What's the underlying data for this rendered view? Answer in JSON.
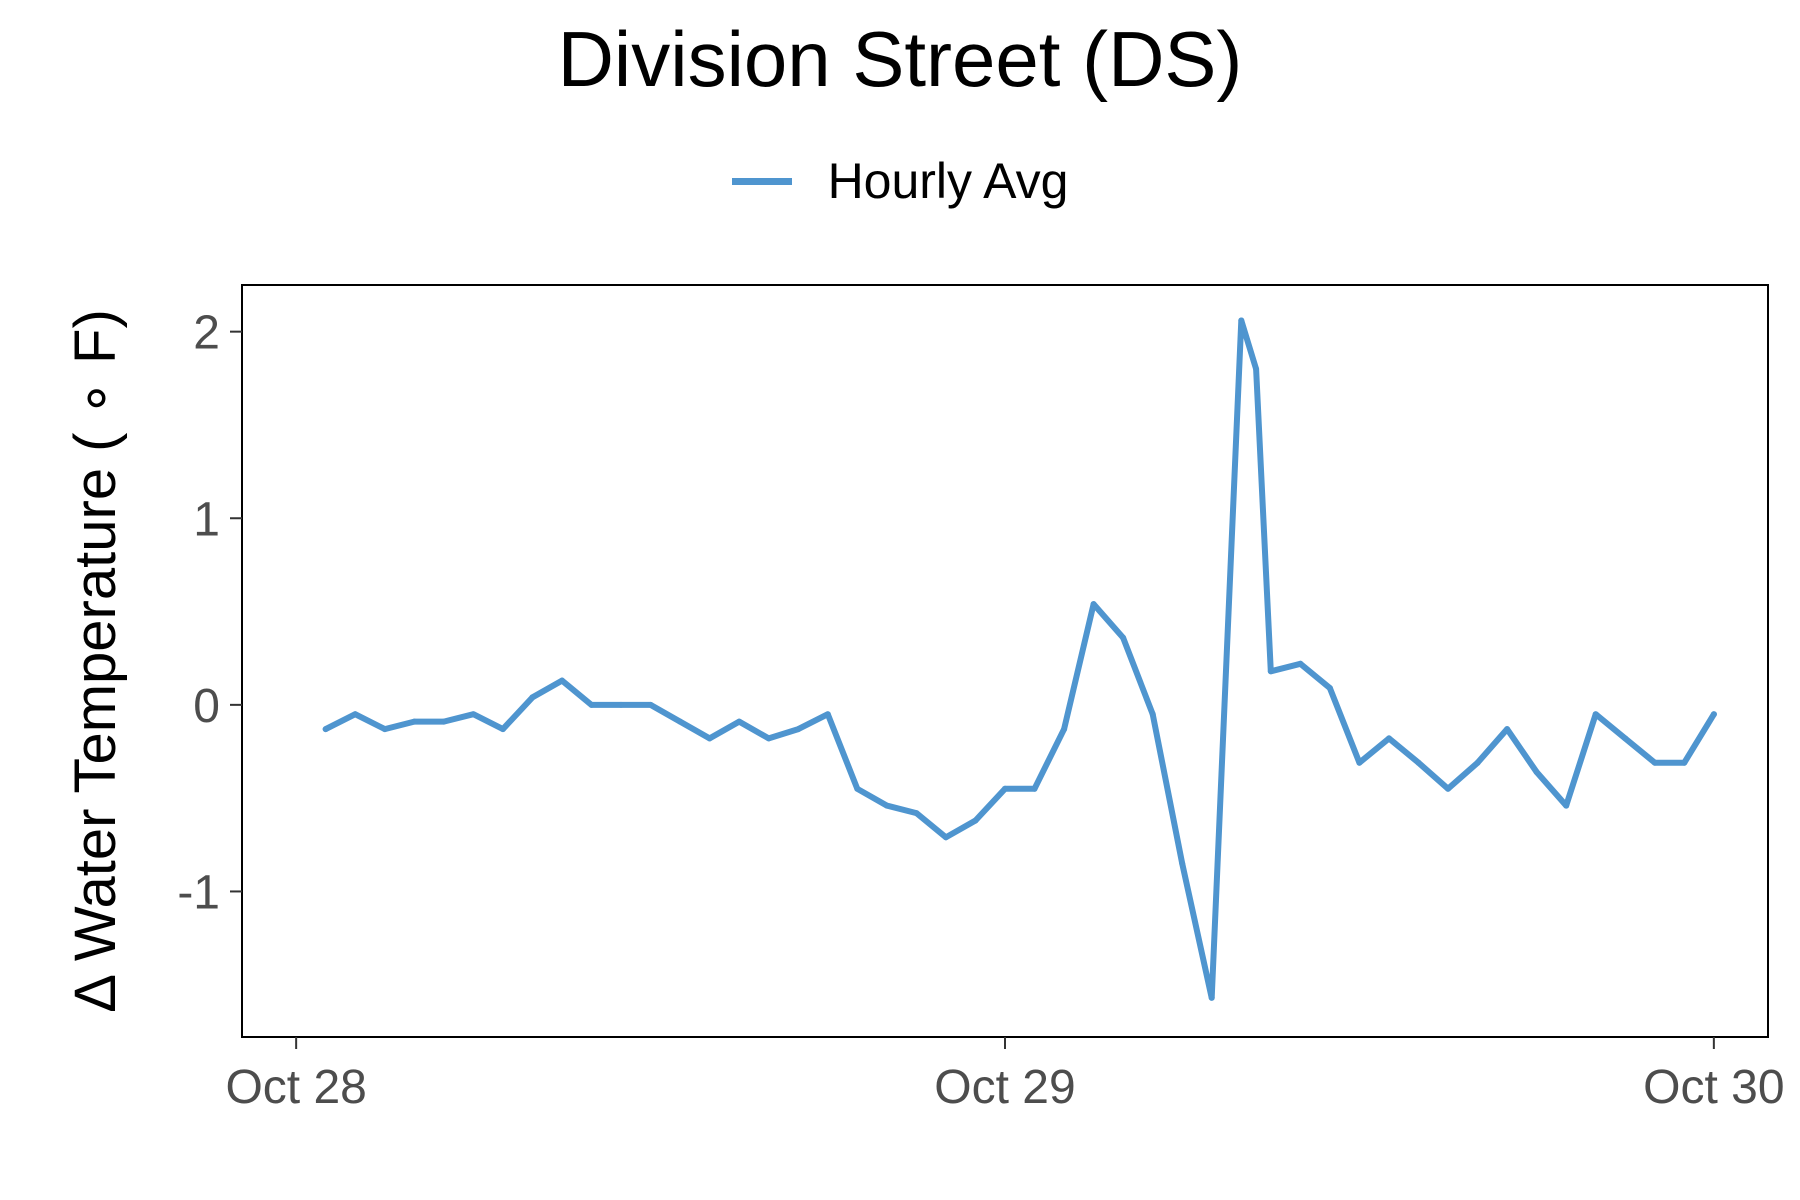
{
  "chart_data": {
    "type": "line",
    "title": "Division Street (DS)",
    "ylabel": "Δ Water Temperature ( ∘ F)",
    "xlabel": "",
    "x_ticks": [
      {
        "value": "2023-10-28T00:00",
        "label": "Oct 28"
      },
      {
        "value": "2023-10-29T00:00",
        "label": "Oct 29"
      },
      {
        "value": "2023-10-30T00:00",
        "label": "Oct 30"
      }
    ],
    "y_ticks": [
      -1,
      0,
      1,
      2
    ],
    "ylim": [
      -1.78,
      2.25
    ],
    "xlim": [
      "2023-10-27T22:10",
      "2023-10-30T01:50"
    ],
    "grid": false,
    "legend_position": "top",
    "series": [
      {
        "name": "Hourly Avg",
        "color": "#4f95cf",
        "x": [
          "2023-10-28T01:00",
          "2023-10-28T02:00",
          "2023-10-28T03:00",
          "2023-10-28T04:00",
          "2023-10-28T05:00",
          "2023-10-28T06:00",
          "2023-10-28T07:00",
          "2023-10-28T08:00",
          "2023-10-28T09:00",
          "2023-10-28T10:00",
          "2023-10-28T11:00",
          "2023-10-28T12:00",
          "2023-10-28T13:00",
          "2023-10-28T14:00",
          "2023-10-28T15:00",
          "2023-10-28T16:00",
          "2023-10-28T17:00",
          "2023-10-28T18:00",
          "2023-10-28T19:00",
          "2023-10-28T20:00",
          "2023-10-28T21:00",
          "2023-10-28T22:00",
          "2023-10-28T23:00",
          "2023-10-29T00:00",
          "2023-10-29T01:00",
          "2023-10-29T02:00",
          "2023-10-29T03:00",
          "2023-10-29T04:00",
          "2023-10-29T05:00",
          "2023-10-29T06:00",
          "2023-10-29T07:00",
          "2023-10-29T08:00",
          "2023-10-29T08:30",
          "2023-10-29T09:00",
          "2023-10-29T10:00",
          "2023-10-29T11:00",
          "2023-10-29T12:00",
          "2023-10-29T13:00",
          "2023-10-29T14:00",
          "2023-10-29T15:00",
          "2023-10-29T16:00",
          "2023-10-29T17:00",
          "2023-10-29T18:00",
          "2023-10-29T19:00",
          "2023-10-29T20:00",
          "2023-10-29T21:00",
          "2023-10-29T22:00",
          "2023-10-29T23:00",
          "2023-10-30T00:00"
        ],
        "y": [
          -0.13,
          -0.05,
          -0.13,
          -0.09,
          -0.09,
          -0.05,
          -0.13,
          0.04,
          0.13,
          0.0,
          0.0,
          0.0,
          -0.09,
          -0.18,
          -0.09,
          -0.18,
          -0.13,
          -0.05,
          -0.45,
          -0.54,
          -0.58,
          -0.71,
          -0.62,
          -0.45,
          -0.45,
          -0.13,
          0.54,
          0.36,
          -0.05,
          -0.85,
          -1.57,
          2.06,
          1.8,
          0.18,
          0.22,
          0.09,
          -0.31,
          -0.18,
          -0.31,
          -0.45,
          -0.31,
          -0.13,
          -0.36,
          -0.54,
          -0.05,
          -0.18,
          -0.31,
          -0.31,
          -0.05
        ]
      }
    ]
  }
}
